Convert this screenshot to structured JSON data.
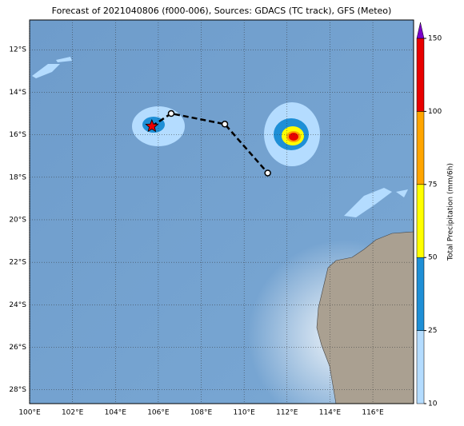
{
  "title": "Forecast of 2021040806 (f000-006), Sources: GDACS (TC track), GFS (Meteo)",
  "map": {
    "lonlim": [
      100,
      117.9
    ],
    "latlim": [
      -10.6,
      -28.65
    ],
    "lon_ticks": [
      {
        "value": 100,
        "label": "100°E"
      },
      {
        "value": 102,
        "label": "102°E"
      },
      {
        "value": 104,
        "label": "104°E"
      },
      {
        "value": 106,
        "label": "106°E"
      },
      {
        "value": 108,
        "label": "108°E"
      },
      {
        "value": 110,
        "label": "110°E"
      },
      {
        "value": 112,
        "label": "112°E"
      },
      {
        "value": 114,
        "label": "114°E"
      },
      {
        "value": 116,
        "label": "116°E"
      }
    ],
    "lat_ticks": [
      {
        "value": -12,
        "label": "12°S"
      },
      {
        "value": -14,
        "label": "14°S"
      },
      {
        "value": -16,
        "label": "16°S"
      },
      {
        "value": -18,
        "label": "18°S"
      },
      {
        "value": -20,
        "label": "20°S"
      },
      {
        "value": -22,
        "label": "22°S"
      },
      {
        "value": -24,
        "label": "24°S"
      },
      {
        "value": -26,
        "label": "26°S"
      },
      {
        "value": -28,
        "label": "28°S"
      }
    ],
    "track": {
      "lon": [
        105.7,
        106.6,
        109.1,
        111.1
      ],
      "lat": [
        -15.6,
        -15.0,
        -15.5,
        -17.8
      ]
    }
  },
  "colorbar": {
    "label": "Total Precipitation (mm/6h)",
    "ticks": [
      10,
      25,
      50,
      75,
      100,
      150
    ],
    "colors": [
      "#b4dcff",
      "#1e8fd6",
      "#ffff00",
      "#ffa500",
      "#e80000"
    ],
    "extend_color": "#7a00c8"
  }
}
